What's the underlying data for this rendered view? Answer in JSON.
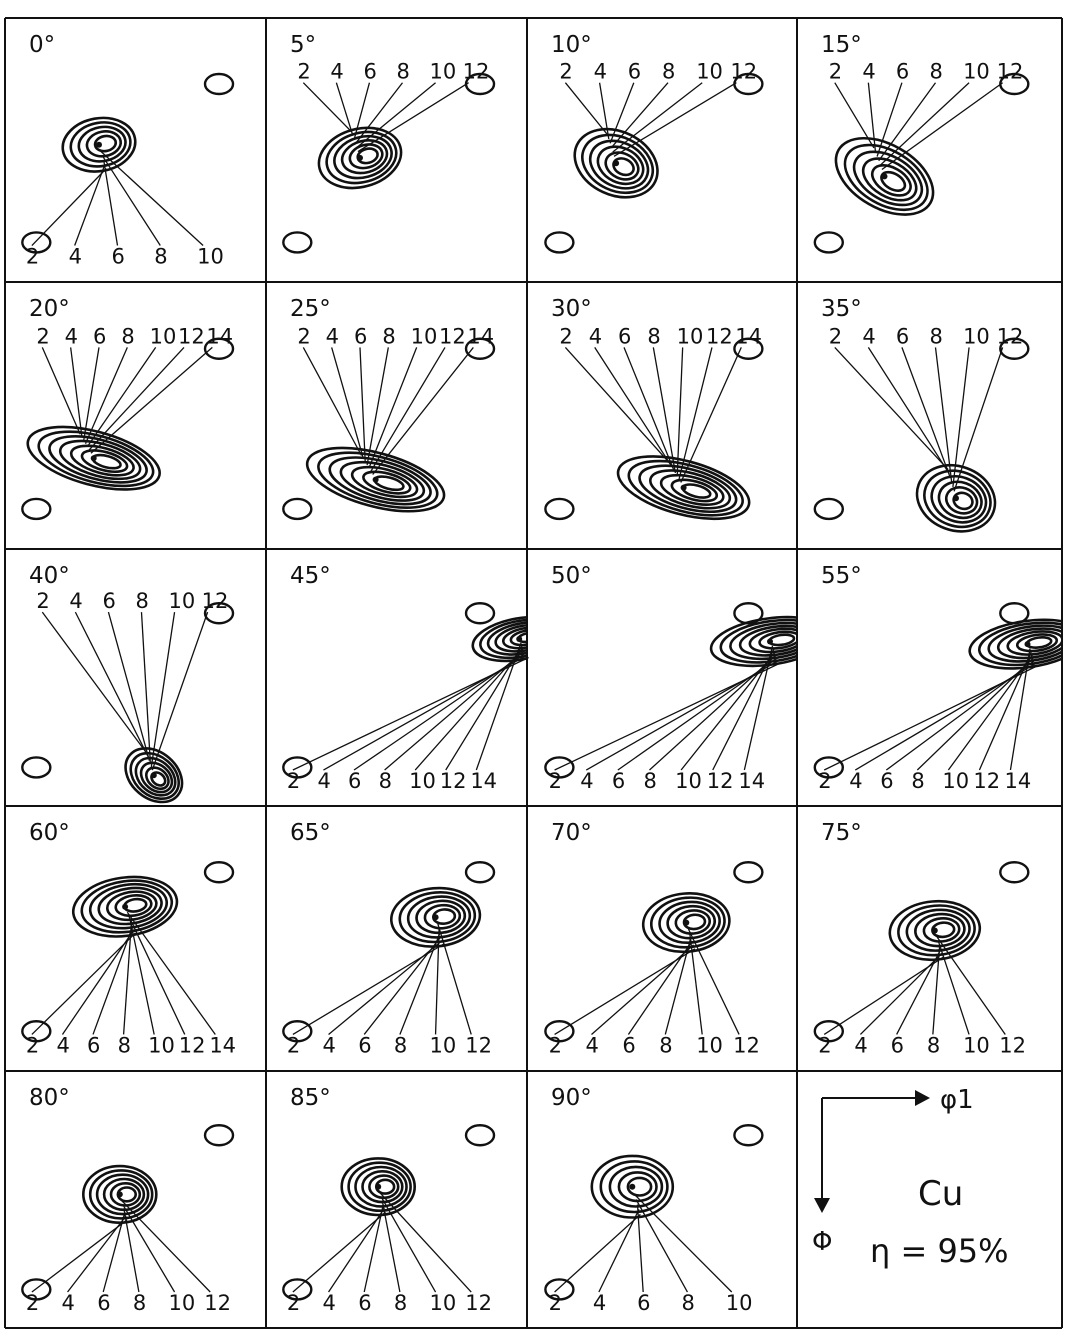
{
  "chart_data": {
    "type": "contour",
    "title": "",
    "material": "Cu",
    "deformation": "η = 95%",
    "axis_horizontal": "φ1",
    "axis_vertical": "Φ",
    "panels": [
      {
        "label": "0°",
        "peak": {
          "u": 0.36,
          "v": 0.48
        },
        "angle": -10,
        "sx": 0.14,
        "sy": 0.1,
        "levels": [
          "2",
          "4",
          "6",
          "8",
          "10"
        ]
      },
      {
        "label": "5°",
        "peak": {
          "u": 0.36,
          "v": 0.53
        },
        "angle": -15,
        "sx": 0.16,
        "sy": 0.11,
        "levels": [
          "2",
          "4",
          "6",
          "8",
          "10",
          "12"
        ]
      },
      {
        "label": "10°",
        "peak": {
          "u": 0.33,
          "v": 0.55
        },
        "angle": 25,
        "sx": 0.16,
        "sy": 0.12,
        "levels": [
          "2",
          "4",
          "6",
          "8",
          "10",
          "12"
        ]
      },
      {
        "label": "15°",
        "peak": {
          "u": 0.33,
          "v": 0.6
        },
        "angle": 30,
        "sx": 0.2,
        "sy": 0.12,
        "levels": [
          "2",
          "4",
          "6",
          "8",
          "10",
          "12"
        ]
      },
      {
        "label": "20°",
        "peak": {
          "u": 0.34,
          "v": 0.66
        },
        "angle": 15,
        "sx": 0.26,
        "sy": 0.1,
        "levels": [
          "2",
          "4",
          "6",
          "8",
          "10",
          "12",
          "14"
        ]
      },
      {
        "label": "25°",
        "peak": {
          "u": 0.42,
          "v": 0.74
        },
        "angle": 15,
        "sx": 0.27,
        "sy": 0.1,
        "levels": [
          "2",
          "4",
          "6",
          "8",
          "10",
          "12",
          "14"
        ]
      },
      {
        "label": "30°",
        "peak": {
          "u": 0.58,
          "v": 0.77
        },
        "angle": 15,
        "sx": 0.25,
        "sy": 0.1,
        "levels": [
          "2",
          "4",
          "6",
          "8",
          "10",
          "12",
          "14"
        ]
      },
      {
        "label": "35°",
        "peak": {
          "u": 0.6,
          "v": 0.81
        },
        "angle": 20,
        "sx": 0.15,
        "sy": 0.12,
        "levels": [
          "2",
          "4",
          "6",
          "8",
          "10",
          "12"
        ]
      },
      {
        "label": "40°",
        "peak": {
          "u": 0.57,
          "v": 0.88
        },
        "angle": 40,
        "sx": 0.12,
        "sy": 0.09,
        "levels": [
          "2",
          "4",
          "6",
          "8",
          "10",
          "12"
        ]
      },
      {
        "label": "45°",
        "peak": {
          "u": 0.97,
          "v": 0.35
        },
        "angle": -10,
        "sx": 0.18,
        "sy": 0.08,
        "levels": [
          "2",
          "4",
          "6",
          "8",
          "10",
          "12",
          "14"
        ]
      },
      {
        "label": "50°",
        "peak": {
          "u": 0.9,
          "v": 0.36
        },
        "angle": -8,
        "sx": 0.22,
        "sy": 0.09,
        "levels": [
          "2",
          "4",
          "6",
          "8",
          "10",
          "12",
          "14"
        ]
      },
      {
        "label": "55°",
        "peak": {
          "u": 0.87,
          "v": 0.37
        },
        "angle": -8,
        "sx": 0.22,
        "sy": 0.09,
        "levels": [
          "2",
          "4",
          "6",
          "8",
          "10",
          "12",
          "14"
        ]
      },
      {
        "label": "60°",
        "peak": {
          "u": 0.46,
          "v": 0.38
        },
        "angle": -8,
        "sx": 0.2,
        "sy": 0.11,
        "levels": [
          "2",
          "4",
          "6",
          "8",
          "10",
          "12",
          "14"
        ]
      },
      {
        "label": "65°",
        "peak": {
          "u": 0.65,
          "v": 0.42
        },
        "angle": -5,
        "sx": 0.17,
        "sy": 0.11,
        "levels": [
          "2",
          "4",
          "6",
          "8",
          "10",
          "12"
        ]
      },
      {
        "label": "70°",
        "peak": {
          "u": 0.59,
          "v": 0.44
        },
        "angle": -5,
        "sx": 0.16,
        "sy": 0.11,
        "levels": [
          "2",
          "4",
          "6",
          "8",
          "10",
          "12"
        ]
      },
      {
        "label": "75°",
        "peak": {
          "u": 0.52,
          "v": 0.47
        },
        "angle": -5,
        "sx": 0.17,
        "sy": 0.11,
        "levels": [
          "2",
          "4",
          "6",
          "8",
          "10",
          "12"
        ]
      },
      {
        "label": "80°",
        "peak": {
          "u": 0.44,
          "v": 0.48
        },
        "angle": 0,
        "sx": 0.14,
        "sy": 0.11,
        "levels": [
          "2",
          "4",
          "6",
          "8",
          "10",
          "12"
        ]
      },
      {
        "label": "85°",
        "peak": {
          "u": 0.43,
          "v": 0.45
        },
        "angle": 0,
        "sx": 0.14,
        "sy": 0.11,
        "levels": [
          "2",
          "4",
          "6",
          "8",
          "10",
          "12"
        ]
      },
      {
        "label": "90°",
        "peak": {
          "u": 0.39,
          "v": 0.45
        },
        "angle": 0,
        "sx": 0.15,
        "sy": 0.12,
        "levels": [
          "2",
          "4",
          "6",
          "8",
          "10"
        ]
      }
    ]
  }
}
